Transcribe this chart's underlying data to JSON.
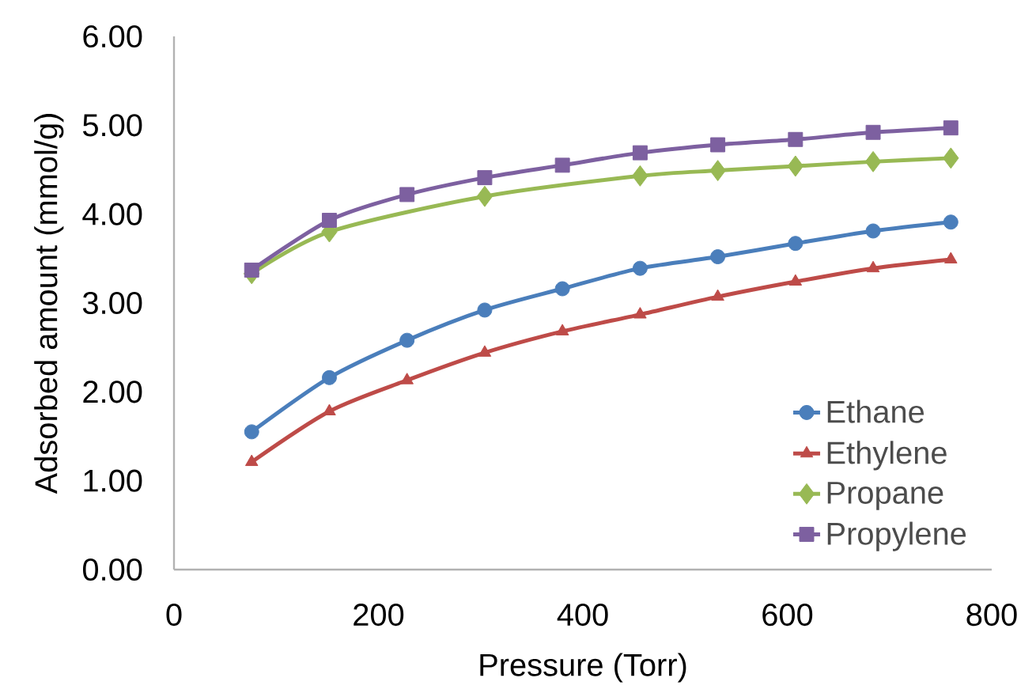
{
  "chart_data": {
    "type": "line",
    "xlabel": "Pressure (Torr)",
    "ylabel": "Adsorbed amount (mmol/g)",
    "xlim": [
      0,
      800
    ],
    "xticks": [
      0,
      200,
      400,
      600,
      800
    ],
    "ylim": [
      0,
      6
    ],
    "yticks": [
      {
        "value": 0,
        "label": "0.00"
      },
      {
        "value": 1,
        "label": "1.00"
      },
      {
        "value": 2,
        "label": "2.00"
      },
      {
        "value": 3,
        "label": "3.00"
      },
      {
        "value": 4,
        "label": "4.00"
      },
      {
        "value": 5,
        "label": "5.00"
      },
      {
        "value": 6,
        "label": "6.00"
      }
    ],
    "x": [
      76,
      152,
      228,
      304,
      380,
      456,
      532,
      608,
      684,
      760
    ],
    "grid": false,
    "legend": "bottom right",
    "series": [
      {
        "name": "Ethane",
        "color": "#4a7ebb",
        "marker": "circle",
        "values": [
          1.55,
          2.16,
          2.58,
          2.92,
          3.16,
          3.39,
          3.52,
          3.67,
          3.81,
          3.91
        ]
      },
      {
        "name": "Ethylene",
        "color": "#be4b48",
        "marker": "triangle",
        "values": [
          1.21,
          1.78,
          2.13,
          2.44,
          2.68,
          2.87,
          3.07,
          3.24,
          3.39,
          3.49
        ]
      },
      {
        "name": "Propane",
        "color": "#98b954",
        "marker": "diamond",
        "x": [
          76,
          152,
          304,
          456,
          532,
          608,
          684,
          760
        ],
        "values": [
          3.33,
          3.8,
          4.2,
          4.43,
          4.49,
          4.54,
          4.59,
          4.63
        ]
      },
      {
        "name": "Propylene",
        "color": "#7d60a0",
        "marker": "square",
        "values": [
          3.37,
          3.93,
          4.22,
          4.41,
          4.55,
          4.69,
          4.78,
          4.84,
          4.92,
          4.97
        ]
      }
    ]
  }
}
